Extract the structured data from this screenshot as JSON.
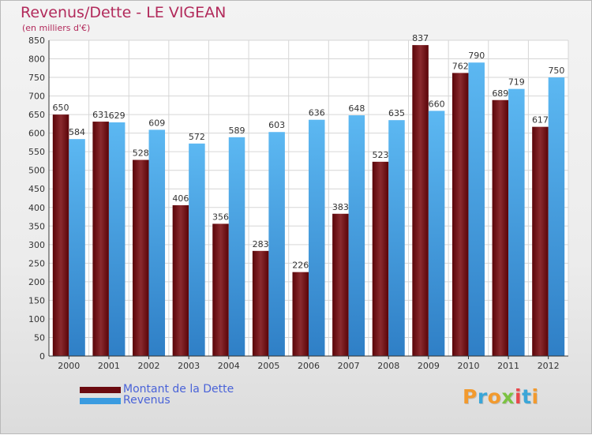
{
  "title": "Revenus/Dette - LE VIGEAN",
  "subtitle": "(en milliers d'€)",
  "logo_text": "Proxiti",
  "colors": {
    "debt": "#6b0a10",
    "revenue": "#3a9be0",
    "title": "#b22a5b",
    "legend_text": "#4a63d8"
  },
  "chart_data": {
    "type": "bar",
    "categories": [
      "2000",
      "2001",
      "2002",
      "2003",
      "2004",
      "2005",
      "2006",
      "2007",
      "2008",
      "2009",
      "2010",
      "2011",
      "2012"
    ],
    "series": [
      {
        "name": "Montant de la Dette",
        "values": [
          650,
          631,
          528,
          406,
          356,
          283,
          226,
          383,
          523,
          837,
          762,
          689,
          617
        ]
      },
      {
        "name": "Revenus",
        "values": [
          584,
          629,
          609,
          572,
          589,
          603,
          636,
          648,
          635,
          660,
          790,
          719,
          750
        ]
      }
    ],
    "ylim": [
      0,
      850
    ],
    "ytick_step": 50,
    "grid": true,
    "legend_position": "bottom-left"
  }
}
